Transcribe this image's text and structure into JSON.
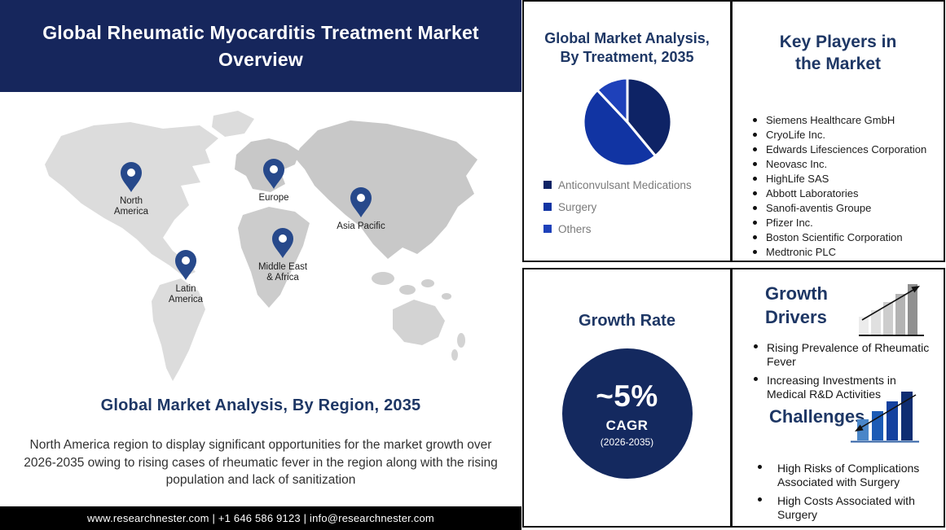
{
  "header": {
    "title": "Global Rheumatic Myocarditis Treatment Market Overview"
  },
  "region_section": {
    "heading": "Global Market Analysis, By Region, 2035",
    "description": "North America region to display significant opportunities for the market growth over 2026-2035 owing to rising cases of rheumatic fever in the region along with the rising population and lack of sanitization",
    "regions": [
      {
        "name": "North America",
        "lines": [
          "North",
          "America"
        ]
      },
      {
        "name": "Europe",
        "lines": [
          "Europe"
        ]
      },
      {
        "name": "Asia Pacific",
        "lines": [
          "Asia Pacific"
        ]
      },
      {
        "name": "Middle East & Africa",
        "lines": [
          "Middle East",
          "& Africa"
        ]
      },
      {
        "name": "Latin America",
        "lines": [
          "Latin",
          "America"
        ]
      }
    ]
  },
  "footer": {
    "text": "www.researchnester.com | +1 646 586 9123 | info@researchnester.com"
  },
  "chart_data": {
    "type": "pie",
    "title": "Global Market Analysis, By Treatment, 2035",
    "labels": [
      "Anticonvulsant Medications",
      "Surgery",
      "Others"
    ],
    "values": [
      39,
      49,
      12
    ],
    "colors": [
      "#0e2365",
      "#1134a3",
      "#1e41ba"
    ],
    "legend_position": "bottom-left",
    "start_angle_deg": 0,
    "slice_gap": "white 3px stroke"
  },
  "key_players": {
    "heading": "Key Players in the Market",
    "items": [
      "Siemens Healthcare GmbH",
      "CryoLife Inc.",
      "Edwards Lifesciences Corporation",
      "Neovasc Inc.",
      "HighLife SAS",
      "Abbott Laboratories",
      "Sanofi-aventis Groupe",
      "Pfizer Inc.",
      "Boston Scientific Corporation",
      "Medtronic PLC"
    ]
  },
  "growth_rate": {
    "heading": "Growth Rate",
    "value": "~5%",
    "label": "CAGR",
    "period": "(2026-2035)"
  },
  "growth_drivers": {
    "heading": "Growth Drivers",
    "items": [
      "Rising Prevalence of Rheumatic Fever",
      "Increasing Investments in Medical R&D Activities"
    ]
  },
  "challenges": {
    "heading": "Challenges",
    "items": [
      "High Risks of Complications Associated with Surgery",
      "High Costs Associated with Surgery"
    ]
  },
  "colors": {
    "banner_navy": "#16265c",
    "heading_navy": "#1e3765",
    "growth_circle_navy": "#14295f",
    "footer_black": "#000000",
    "legend_text_gray": "#7a7a7a",
    "map_pin_blue": "#27498b",
    "map_gray_west": "#dcdcdc",
    "map_gray_east": "#c8c8c8"
  }
}
